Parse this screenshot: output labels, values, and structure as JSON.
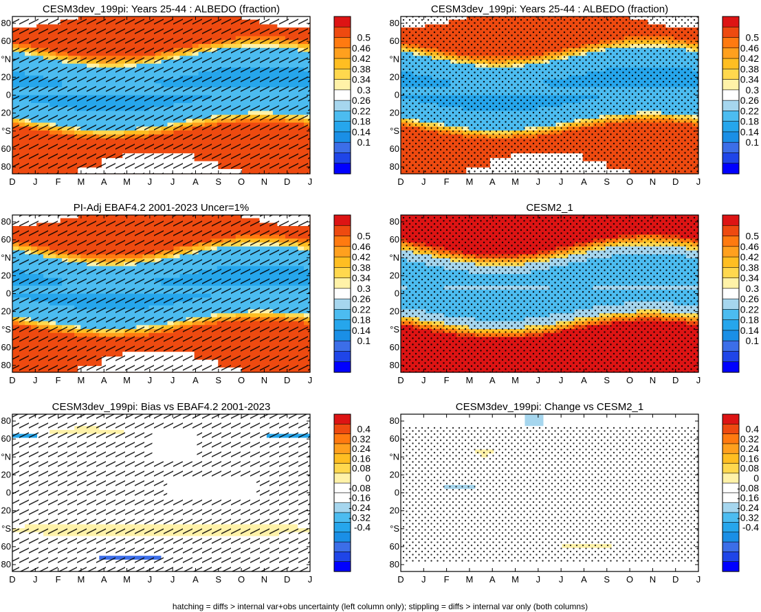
{
  "footnote": "hatching = diffs > internal var+obs uncertainty (left column only); stippling = diffs > internal var only (both columns)",
  "chart_data": [
    {
      "type": "heatmap",
      "title": "CESM3dev_199pi: Years 25-44 : ALBEDO (fraction)",
      "kind": "albedo",
      "hatch": true,
      "stipple": false,
      "polar_mask": true,
      "variant": 0,
      "x_ticks": [
        "D",
        "J",
        "F",
        "M",
        "A",
        "M",
        "J",
        "J",
        "A",
        "S",
        "O",
        "N",
        "D",
        "J"
      ],
      "y_ticks": [
        "80",
        "60",
        "°N",
        "20",
        "0",
        "20",
        "°S",
        "60",
        "80"
      ],
      "colorbar": [
        "0.5",
        "0.46",
        "0.42",
        "0.38",
        "0.34",
        "0.3",
        "0.26",
        "0.22",
        "0.18",
        "0.14",
        "0.1"
      ]
    },
    {
      "type": "heatmap",
      "title": "CESM3dev_199pi: Years 25-44 : ALBEDO (fraction)",
      "kind": "albedo",
      "hatch": false,
      "stipple": true,
      "polar_mask": true,
      "variant": 1,
      "x_ticks": [
        "D",
        "J",
        "F",
        "M",
        "A",
        "M",
        "J",
        "J",
        "A",
        "S",
        "O",
        "N",
        "D",
        "J"
      ],
      "y_ticks": [
        "80",
        "60",
        "°N",
        "20",
        "0",
        "20",
        "°S",
        "60",
        "80"
      ],
      "colorbar": [
        "0.5",
        "0.46",
        "0.42",
        "0.38",
        "0.34",
        "0.3",
        "0.26",
        "0.22",
        "0.18",
        "0.14",
        "0.1"
      ]
    },
    {
      "type": "heatmap",
      "title": "PI-Adj EBAF4.2 2001-2023 Uncer=1%",
      "kind": "albedo",
      "hatch": true,
      "stipple": false,
      "polar_mask": true,
      "variant": 2,
      "x_ticks": [
        "D",
        "J",
        "F",
        "M",
        "A",
        "M",
        "J",
        "J",
        "A",
        "S",
        "O",
        "N",
        "D",
        "J"
      ],
      "y_ticks": [
        "80",
        "60",
        "°N",
        "20",
        "0",
        "20",
        "°S",
        "60",
        "80"
      ],
      "colorbar": [
        "0.5",
        "0.46",
        "0.42",
        "0.38",
        "0.34",
        "0.3",
        "0.26",
        "0.22",
        "0.18",
        "0.14",
        "0.1"
      ]
    },
    {
      "type": "heatmap",
      "title": "CESM2_1",
      "kind": "albedo",
      "hatch": false,
      "stipple": true,
      "polar_mask": false,
      "variant": 3,
      "x_ticks": [
        "D",
        "J",
        "F",
        "M",
        "A",
        "M",
        "J",
        "J",
        "A",
        "S",
        "O",
        "N",
        "D",
        "J"
      ],
      "y_ticks": [
        "80",
        "60",
        "°N",
        "20",
        "0",
        "20",
        "°S",
        "60",
        "80"
      ],
      "colorbar": [
        "0.5",
        "0.46",
        "0.42",
        "0.38",
        "0.34",
        "0.3",
        "0.26",
        "0.22",
        "0.18",
        "0.14",
        "0.1"
      ]
    },
    {
      "type": "heatmap",
      "title": "CESM3dev_199pi: Bias vs EBAF4.2 2001-2023",
      "kind": "diff",
      "hatch": true,
      "stipple": false,
      "polar_mask": false,
      "variant": 4,
      "x_ticks": [
        "D",
        "J",
        "F",
        "M",
        "A",
        "M",
        "J",
        "J",
        "A",
        "S",
        "O",
        "N",
        "D",
        "J"
      ],
      "y_ticks": [
        "80",
        "60",
        "°N",
        "20",
        "0",
        "20",
        "°S",
        "60",
        "80"
      ],
      "colorbar": [
        "0.4",
        "0.32",
        "0.24",
        "0.16",
        "0.08",
        "0",
        "-0.08",
        "-0.16",
        "-0.24",
        "-0.32",
        "-0.4"
      ]
    },
    {
      "type": "heatmap",
      "title": "CESM3dev_199pi: Change vs CESM2_1",
      "kind": "diff",
      "hatch": false,
      "stipple": true,
      "polar_mask": false,
      "variant": 5,
      "x_ticks": [
        "D",
        "J",
        "F",
        "M",
        "A",
        "M",
        "J",
        "J",
        "A",
        "S",
        "O",
        "N",
        "D",
        "J"
      ],
      "y_ticks": [
        "80",
        "60",
        "°N",
        "20",
        "0",
        "20",
        "°S",
        "60",
        "80"
      ],
      "colorbar": [
        "0.4",
        "0.32",
        "0.24",
        "0.16",
        "0.08",
        "0",
        "-0.08",
        "-0.16",
        "-0.24",
        "-0.32",
        "-0.4"
      ]
    }
  ],
  "colors": {
    "albedo_scale": [
      "#0000ff",
      "#1f45e8",
      "#3c6ee8",
      "#1a8fe6",
      "#26a6ec",
      "#4cbcf0",
      "#a6d6ee",
      "#ffffff",
      "#fff2a8",
      "#ffd84e",
      "#ffbe22",
      "#ffa01e",
      "#ff7a10",
      "#ee4a10",
      "#dd1414"
    ],
    "diff_scale": [
      "#0000ff",
      "#1f45e8",
      "#3c6ee8",
      "#1a8fe6",
      "#26a6ec",
      "#4cbcf0",
      "#a6d6ee",
      "#ffffff",
      "#ffffff",
      "#fff2a8",
      "#ffd84e",
      "#ffbe22",
      "#ffa01e",
      "#ff7a10",
      "#ee4a10",
      "#dd1414"
    ]
  }
}
